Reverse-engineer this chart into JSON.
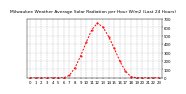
{
  "title": "Milwaukee Weather Average Solar Radiation per Hour W/m2 (Last 24 Hours)",
  "hours": [
    0,
    1,
    2,
    3,
    4,
    5,
    6,
    7,
    8,
    9,
    10,
    11,
    12,
    13,
    14,
    15,
    16,
    17,
    18,
    19,
    20,
    21,
    22,
    23
  ],
  "values": [
    0,
    0,
    0,
    0,
    0,
    0,
    2,
    30,
    120,
    260,
    420,
    570,
    650,
    600,
    490,
    350,
    200,
    80,
    15,
    1,
    0,
    0,
    0,
    0
  ],
  "line_color": "#ff0000",
  "bg_color": "#ffffff",
  "grid_color": "#999999",
  "ylim": [
    0,
    700
  ],
  "yticks": [
    0,
    100,
    200,
    300,
    400,
    500,
    600,
    700
  ],
  "title_fontsize": 3.2,
  "tick_fontsize": 2.8
}
